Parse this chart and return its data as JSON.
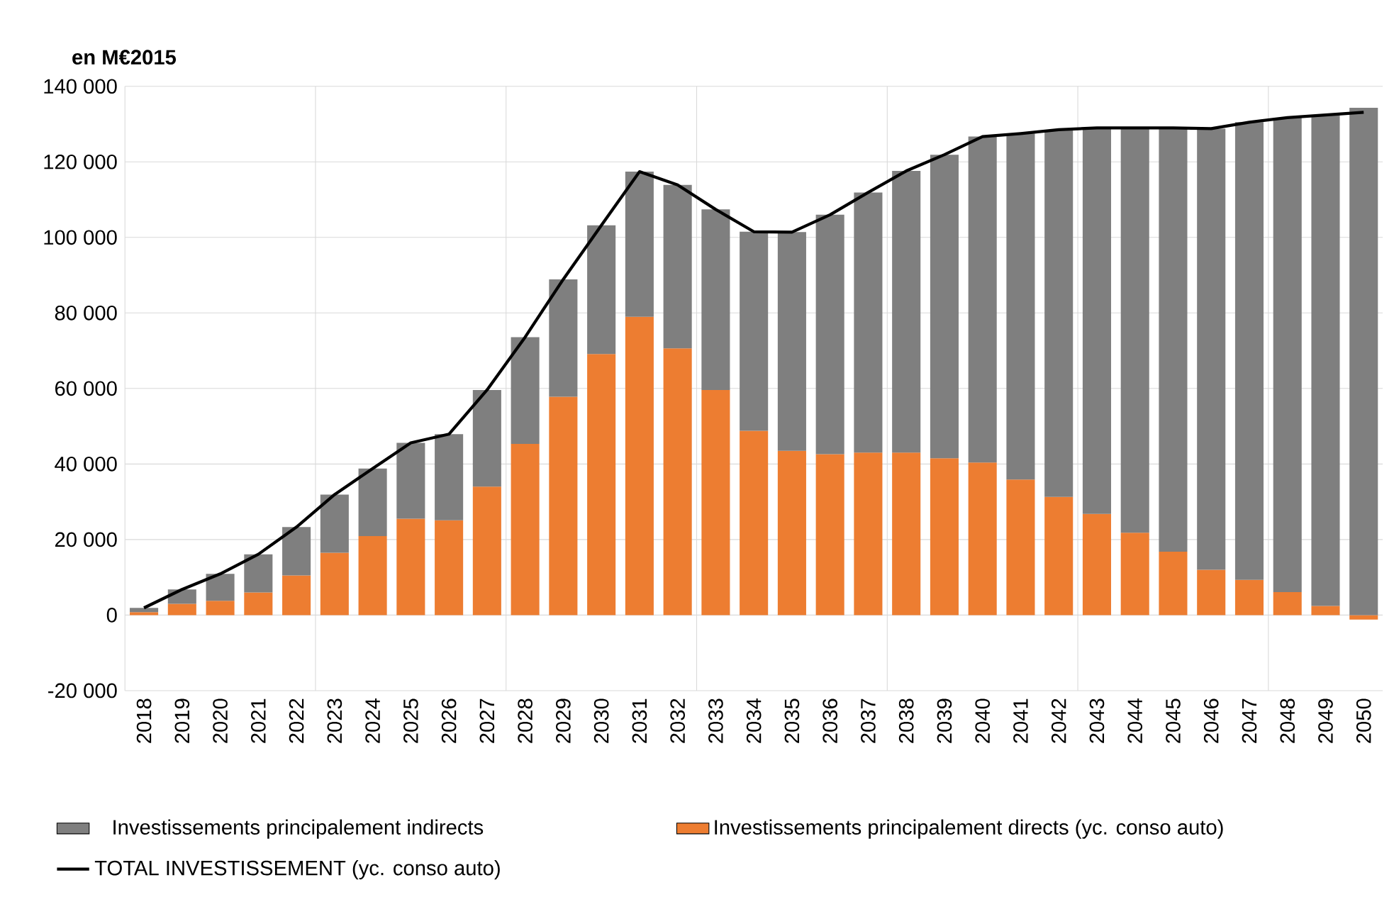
{
  "chart_data": {
    "type": "bar",
    "stacked": true,
    "title": "en M€2015",
    "categories": [
      "2018",
      "2019",
      "2020",
      "2021",
      "2022",
      "2023",
      "2024",
      "2025",
      "2026",
      "2027",
      "2028",
      "2029",
      "2030",
      "2031",
      "2032",
      "2033",
      "2034",
      "2035",
      "2036",
      "2037",
      "2038",
      "2039",
      "2040",
      "2041",
      "2042",
      "2043",
      "2044",
      "2045",
      "2046",
      "2047",
      "2048",
      "2049",
      "2050"
    ],
    "series": [
      {
        "name": "Investissements principalement directs (yc. conso auto)",
        "color": "#ed7d31",
        "values": [
          800,
          3000,
          3800,
          6000,
          10500,
          16500,
          20900,
          25500,
          25100,
          34000,
          45300,
          57800,
          69100,
          79000,
          70600,
          59600,
          48800,
          43500,
          42600,
          43000,
          43000,
          41500,
          40400,
          35900,
          31300,
          26800,
          21800,
          16800,
          12000,
          9300,
          6100,
          2400,
          -1200
        ]
      },
      {
        "name": "Investissements principalement indirects",
        "color": "#7f7f7f",
        "values": [
          1100,
          3800,
          7100,
          10100,
          12800,
          15400,
          17900,
          20100,
          22800,
          25600,
          28300,
          31100,
          34100,
          38400,
          43300,
          47800,
          52700,
          57900,
          63400,
          68900,
          74600,
          80400,
          86300,
          91600,
          97200,
          102200,
          107200,
          112200,
          116800,
          121200,
          125600,
          130000,
          134300
        ]
      },
      {
        "name": "TOTAL INVESTISSEMENT (yc. conso auto)",
        "type": "line",
        "color": "#000000",
        "values": [
          1900,
          6800,
          10900,
          16100,
          23300,
          31900,
          38800,
          45600,
          47900,
          59600,
          73600,
          88900,
          103200,
          117400,
          113900,
          107400,
          101500,
          101400,
          106000,
          111900,
          117600,
          121900,
          126700,
          127500,
          128500,
          129000,
          129000,
          129000,
          128800,
          130500,
          131700,
          132400,
          133100
        ]
      }
    ],
    "ylim": [
      -20000,
      140000
    ],
    "yticks": [
      {
        "value": -20000,
        "label": "-20 000"
      },
      {
        "value": 0,
        "label": "0"
      },
      {
        "value": 20000,
        "label": "20 000"
      },
      {
        "value": 40000,
        "label": "40 000"
      },
      {
        "value": 60000,
        "label": "60 000"
      },
      {
        "value": 80000,
        "label": "80 000"
      },
      {
        "value": 100000,
        "label": "100 000"
      },
      {
        "value": 120000,
        "label": "120 000"
      },
      {
        "value": 140000,
        "label": "140 000"
      }
    ],
    "grid": true,
    "legend": "bottom"
  }
}
